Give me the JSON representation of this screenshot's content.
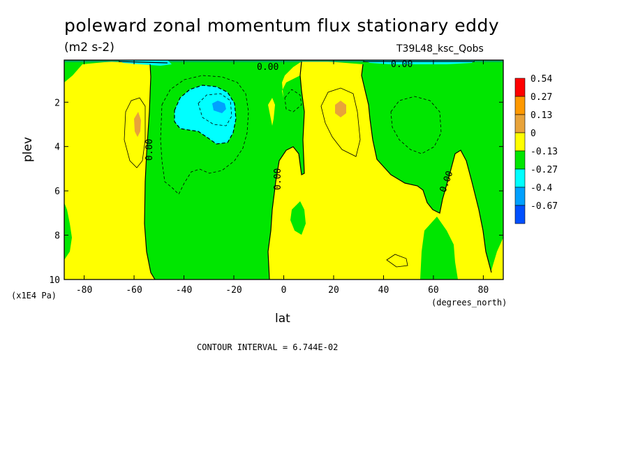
{
  "chart_data": {
    "type": "contour",
    "title": "poleward zonal momentum flux stationary eddy",
    "units": "(m2 s-2)",
    "run_label": "T39L48_ksc_Qobs",
    "xlabel": "lat",
    "x_unit": "(degrees_north)",
    "ylabel": "plev",
    "y_unit": "(x1E4 Pa)",
    "contour_interval_label": "CONTOUR INTERVAL = 6.744E-02",
    "xlim": [
      -88,
      88
    ],
    "ylim": [
      10,
      0.1
    ],
    "x_ticks": [
      -80,
      -60,
      -40,
      -20,
      0,
      20,
      40,
      60,
      80
    ],
    "x_tick_labels": [
      "-80",
      "-60",
      "-40",
      "-20",
      "0",
      "20",
      "40",
      "60",
      "80"
    ],
    "y_ticks": [
      2,
      4,
      6,
      8,
      10
    ],
    "y_tick_labels": [
      "2",
      "4",
      "6",
      "8",
      "10"
    ],
    "zero_contour_label": "0.00",
    "legend": {
      "placement": "right",
      "levels": [
        "0.54",
        "0.27",
        "0.13",
        "0",
        "-0.13",
        "-0.27",
        "-0.4",
        "-0.67"
      ],
      "colors": [
        "#ff0000",
        "#ff9900",
        "#e8a33a",
        "#ffff00",
        "#00e600",
        "#00ffff",
        "#00a0ff",
        "#0050ff"
      ]
    },
    "regions": [
      {
        "name": "positive",
        "color": "#ffff00"
      },
      {
        "name": "negative",
        "color": "#00e600"
      },
      {
        "name": "strong-negative",
        "color": "#00ffff"
      },
      {
        "name": "strong-positive",
        "color": "#e8a33a"
      }
    ]
  }
}
